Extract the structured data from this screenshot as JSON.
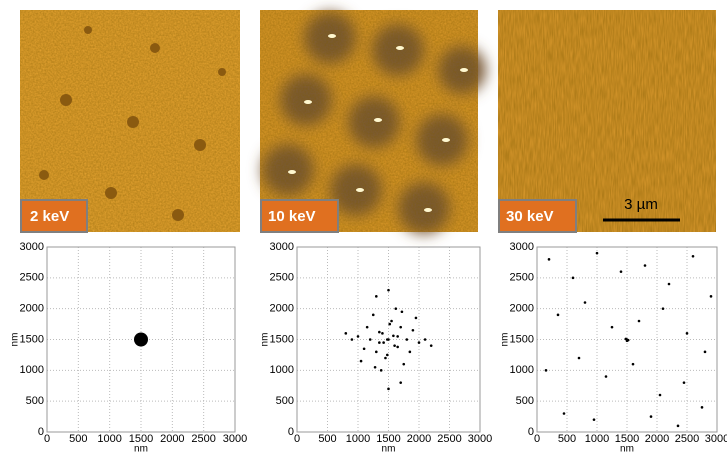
{
  "panels": [
    {
      "label": "2 keV"
    },
    {
      "label": "10 keV"
    },
    {
      "label": "30 keV",
      "scale_bar": "3 µm"
    }
  ],
  "chart_data": [
    {
      "type": "scatter",
      "xlabel": "nm",
      "ylabel": "nm",
      "xlim": [
        0,
        3000
      ],
      "ylim": [
        0,
        3000
      ],
      "xticks": [
        0,
        500,
        1000,
        1500,
        2000,
        2500,
        3000
      ],
      "yticks": [
        0,
        500,
        1000,
        1500,
        2000,
        2500,
        3000
      ],
      "grid": true,
      "color": "#000000",
      "x": [
        1500
      ],
      "y": [
        1500
      ]
    },
    {
      "type": "scatter",
      "xlabel": "nm",
      "ylabel": "nm",
      "xlim": [
        0,
        3000
      ],
      "ylim": [
        0,
        3000
      ],
      "xticks": [
        0,
        500,
        1000,
        1500,
        2000,
        2500,
        3000
      ],
      "yticks": [
        0,
        500,
        1000,
        1500,
        2000,
        2500,
        3000
      ],
      "grid": true,
      "color": "#000000",
      "x": [
        1500,
        1420,
        1580,
        1350,
        1650,
        1300,
        1700,
        1450,
        1550,
        1200,
        1800,
        1100,
        1900,
        1000,
        2000,
        1250,
        1750,
        1380,
        1620,
        900,
        2100,
        1480,
        1520,
        1150,
        1850,
        1600,
        1400,
        1300,
        1700,
        800,
        2200,
        1500,
        1500,
        1050,
        1950,
        1350,
        1650,
        1480,
        1720,
        1280
      ],
      "y": [
        1500,
        1450,
        1560,
        1620,
        1380,
        1300,
        1700,
        1200,
        1800,
        1500,
        1500,
        1350,
        1650,
        1550,
        1450,
        1900,
        1100,
        1000,
        2000,
        1500,
        1500,
        1250,
        1750,
        1700,
        1300,
        1400,
        1600,
        2200,
        800,
        1600,
        1400,
        700,
        2300,
        1150,
        1850,
        1450,
        1550,
        1500,
        1950,
        1050
      ]
    },
    {
      "type": "scatter",
      "xlabel": "nm",
      "ylabel": "nm",
      "xlim": [
        0,
        3000
      ],
      "ylim": [
        0,
        3000
      ],
      "xticks": [
        0,
        500,
        1000,
        1500,
        2000,
        2500,
        3000
      ],
      "yticks": [
        0,
        500,
        1000,
        1500,
        2000,
        2500,
        3000
      ],
      "grid": true,
      "color": "#000000",
      "x": [
        1500,
        1480,
        1520,
        1500,
        200,
        600,
        1000,
        1400,
        1800,
        2200,
        2600,
        2900,
        350,
        800,
        1250,
        1700,
        2100,
        2500,
        2800,
        150,
        700,
        1150,
        1600,
        2050,
        2450,
        2750,
        450,
        950,
        1900,
        2350
      ],
      "y": [
        1500,
        1510,
        1490,
        1480,
        2800,
        2500,
        2900,
        2600,
        2700,
        2400,
        2850,
        2200,
        1900,
        2100,
        1700,
        1800,
        2000,
        1600,
        1300,
        1000,
        1200,
        900,
        1100,
        600,
        800,
        400,
        300,
        200,
        250,
        100
      ]
    }
  ]
}
